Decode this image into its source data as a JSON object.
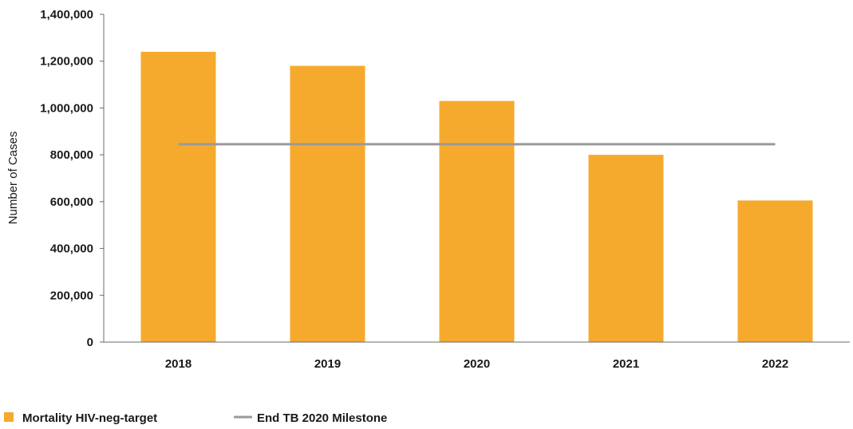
{
  "chart_data": {
    "type": "bar",
    "categories": [
      "2018",
      "2019",
      "2020",
      "2021",
      "2022"
    ],
    "series": [
      {
        "name": "Mortality HIV-neg-target",
        "type": "bar",
        "color": "#F6AA2D",
        "values": [
          1240000,
          1180000,
          1030000,
          800000,
          605000
        ]
      },
      {
        "name": "End TB 2020 Milestone",
        "type": "line",
        "color": "#9A9A9A",
        "values": [
          845000,
          845000,
          845000,
          845000,
          845000
        ]
      }
    ],
    "ylabel": "Number of Cases",
    "ylim": [
      0,
      1400000
    ],
    "yticks": [
      0,
      200000,
      400000,
      600000,
      800000,
      1000000,
      1200000,
      1400000
    ],
    "ytick_labels": [
      "0",
      "200,000",
      "400,000",
      "600,000",
      "800,000",
      "1,000,000",
      "1,200,000",
      "1,400,000"
    ],
    "grid": false,
    "legend_position": "bottom-left"
  }
}
